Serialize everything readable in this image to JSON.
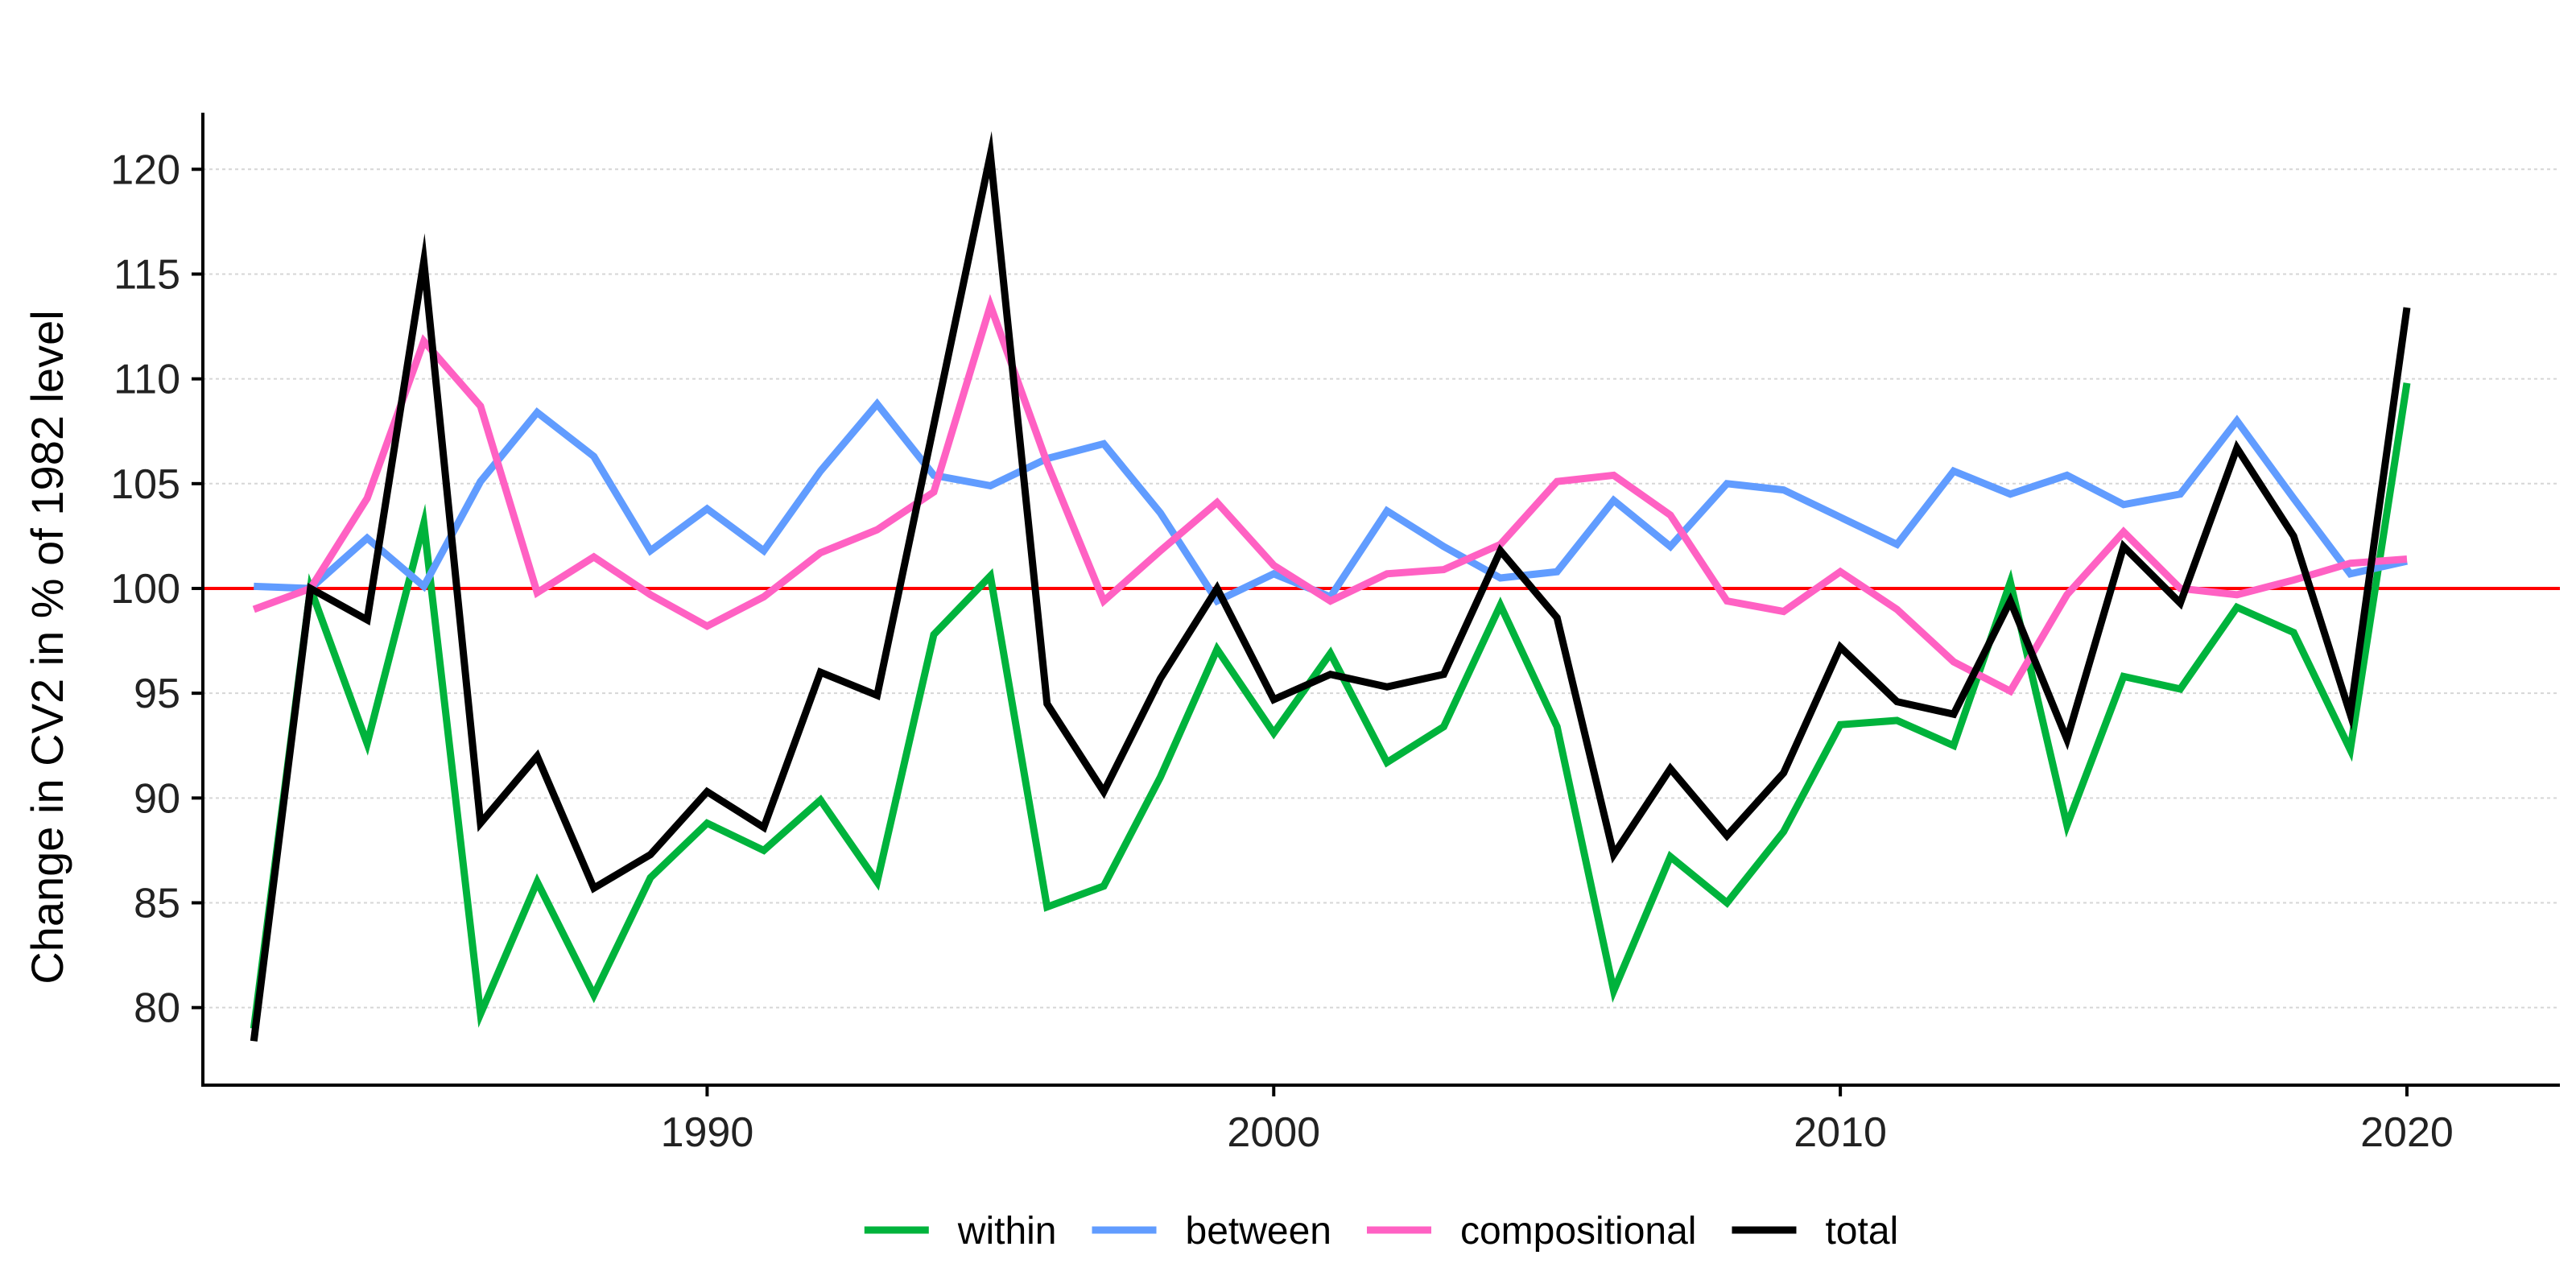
{
  "chart_data": {
    "type": "line",
    "title": "",
    "xlabel": "",
    "ylabel": "Change in CV2 in % of 1982 level",
    "xlim": [
      1981.1,
      2022.7
    ],
    "ylim": [
      76.3,
      122.7
    ],
    "x_ticks": [
      1990,
      2000,
      2010,
      2020
    ],
    "y_ticks": [
      80,
      85,
      90,
      95,
      100,
      105,
      110,
      115,
      120
    ],
    "grid": "horizontal-dashed",
    "legend_position": "bottom",
    "reference_line": {
      "y": 100,
      "color": "#ff0000"
    },
    "x": [
      1982,
      1983,
      1984,
      1985,
      1986,
      1987,
      1988,
      1989,
      1990,
      1991,
      1992,
      1993,
      1994,
      1995,
      1996,
      1997,
      1998,
      1999,
      2000,
      2001,
      2002,
      2003,
      2004,
      2005,
      2006,
      2007,
      2008,
      2009,
      2010,
      2011,
      2012,
      2013,
      2014,
      2015,
      2016,
      2017,
      2018,
      2019,
      2020
    ],
    "series": [
      {
        "name": "within",
        "color": "#00b33c",
        "values": [
          79.0,
          100.0,
          92.6,
          103.1,
          79.7,
          86.0,
          80.6,
          86.2,
          88.8,
          87.5,
          89.9,
          86.0,
          97.8,
          100.6,
          84.8,
          85.8,
          91.0,
          97.1,
          93.1,
          96.9,
          91.7,
          93.4,
          99.2,
          93.4,
          80.8,
          87.2,
          85.0,
          88.4,
          93.5,
          93.7,
          92.5,
          100.3,
          88.7,
          95.8,
          95.2,
          99.1,
          97.9,
          92.3,
          109.8
        ]
      },
      {
        "name": "between",
        "color": "#619cff",
        "values": [
          100.1,
          100.0,
          102.4,
          100.1,
          105.1,
          108.4,
          106.3,
          101.8,
          103.8,
          101.8,
          105.6,
          108.8,
          105.4,
          104.9,
          106.2,
          106.9,
          103.6,
          99.4,
          100.7,
          99.6,
          103.7,
          102.0,
          100.5,
          100.8,
          104.2,
          102.0,
          105.0,
          104.7,
          103.4,
          102.1,
          105.6,
          104.5,
          105.4,
          104.0,
          104.5,
          108.0,
          104.3,
          100.7,
          101.3
        ]
      },
      {
        "name": "compositional",
        "color": "#ff61c3",
        "values": [
          99.0,
          100.0,
          104.3,
          111.8,
          108.7,
          99.8,
          101.5,
          99.7,
          98.2,
          99.6,
          101.7,
          102.8,
          104.6,
          113.5,
          106.0,
          99.4,
          101.8,
          104.1,
          101.1,
          99.4,
          100.7,
          100.9,
          102.1,
          105.1,
          105.4,
          103.5,
          99.4,
          98.9,
          100.8,
          99.0,
          96.5,
          95.1,
          99.7,
          102.7,
          100.0,
          99.7,
          100.4,
          101.2,
          101.4
        ]
      },
      {
        "name": "total",
        "color": "#000000",
        "values": [
          78.4,
          100.0,
          98.5,
          115.6,
          88.8,
          92.0,
          85.7,
          87.3,
          90.3,
          88.6,
          96.0,
          94.9,
          107.8,
          120.7,
          94.5,
          90.3,
          95.7,
          100.0,
          94.7,
          95.9,
          95.3,
          95.9,
          101.8,
          98.6,
          87.3,
          91.4,
          88.2,
          91.2,
          97.2,
          94.6,
          94.0,
          99.4,
          92.8,
          102.0,
          99.3,
          106.7,
          102.5,
          94.0,
          113.4
        ]
      }
    ]
  }
}
